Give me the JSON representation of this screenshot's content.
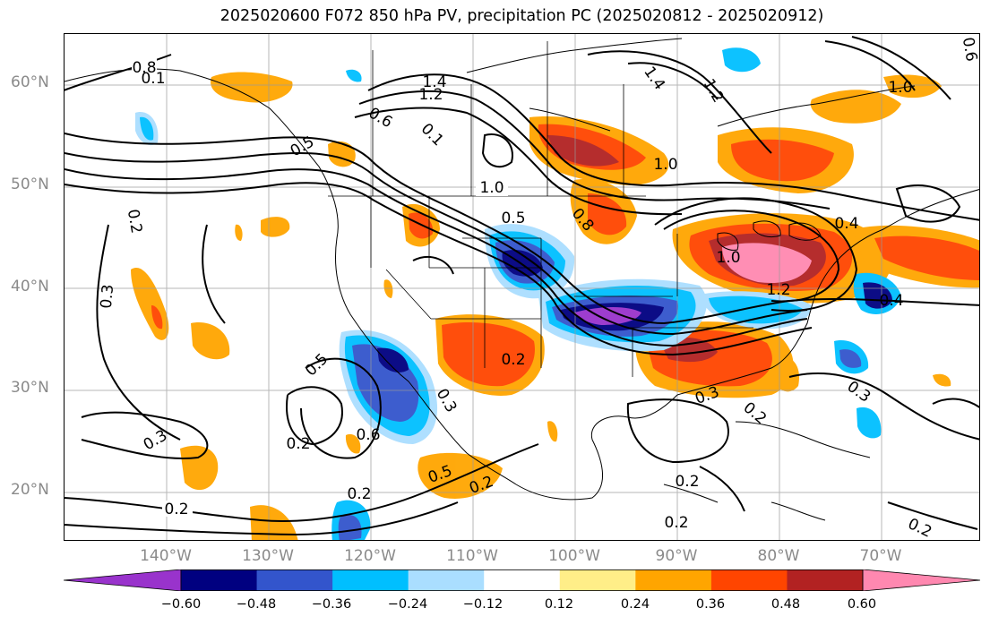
{
  "title": "2025020600 F072 850 hPa PV, precipitation PC (2025020812 - 2025020912)",
  "map": {
    "lat_labels": [
      "60°N",
      "50°N",
      "40°N",
      "30°N",
      "20°N"
    ],
    "lon_labels": [
      "140°W",
      "130°W",
      "120°W",
      "110°W",
      "100°W",
      "90°W",
      "80°W",
      "70°W"
    ],
    "contour_labels": [
      "0.8",
      "0.1",
      "1.4",
      "1.2",
      "1.4",
      "1.2",
      "0.6",
      "0.6",
      "0.5",
      "0.1",
      "1.0",
      "0.5",
      "0.8",
      "1.0",
      "1.0",
      "0.4",
      "1.0",
      "1.2",
      "0.4",
      "0.2",
      "0.3",
      "0.5",
      "0.2",
      "0.6",
      "0.2",
      "0.3",
      "0.3",
      "0.5",
      "0.2",
      "0.2",
      "0.2",
      "0.3",
      "0.3",
      "0.2",
      "0.2",
      "0.2",
      "0.2"
    ]
  },
  "colorbar": {
    "ticks": [
      "−0.60",
      "−0.48",
      "−0.36",
      "−0.24",
      "−0.12",
      "0.12",
      "0.24",
      "0.36",
      "0.48",
      "0.60"
    ],
    "colors": [
      "#9933cc",
      "#000080",
      "#3355cc",
      "#00bfff",
      "#aadeff",
      "#ffffff",
      "#ffee88",
      "#ffa500",
      "#ff4500",
      "#b22222",
      "#ff88b0"
    ]
  }
}
